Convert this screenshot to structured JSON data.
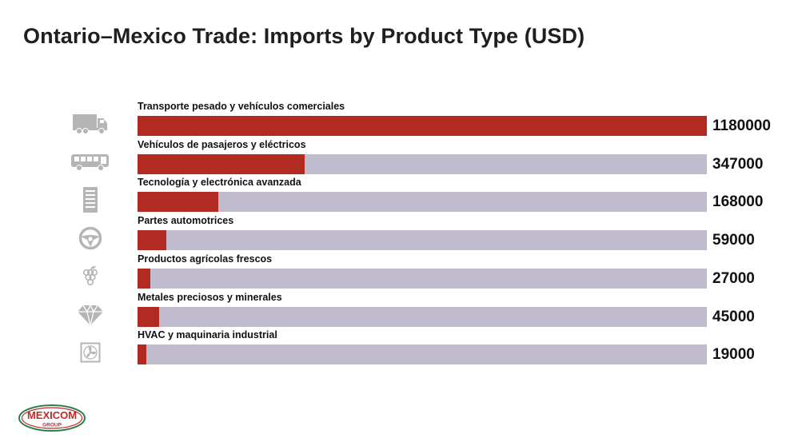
{
  "title": "Ontario–Mexico Trade: Imports by Product Type (USD)",
  "colors": {
    "bar": "#b22b22",
    "track": "#c0bccd",
    "icon": "#b5b5b5"
  },
  "logo": {
    "line1": "MEXICOM",
    "line2": "GROUP"
  },
  "chart_data": {
    "type": "bar",
    "orientation": "horizontal",
    "title": "Ontario–Mexico Trade: Imports by Product Type (USD)",
    "xlim": [
      0,
      1180000
    ],
    "categories": [
      "Transporte pesado y vehículos comerciales",
      "Vehículos de pasajeros y eléctricos",
      "Tecnología y electrónica avanzada",
      "Partes automotrices",
      "Productos agrícolas frescos",
      "Metales preciosos y minerales",
      "HVAC y maquinaria industrial"
    ],
    "values": [
      1180000,
      347000,
      168000,
      59000,
      27000,
      45000,
      19000
    ],
    "value_labels": [
      "1180000",
      "347000",
      "168000",
      "59000",
      "27000",
      "45000",
      "19000"
    ],
    "icons": [
      "truck-icon",
      "bus-icon",
      "server-icon",
      "steering-wheel-icon",
      "grapes-icon",
      "diamond-icon",
      "fan-icon"
    ]
  }
}
